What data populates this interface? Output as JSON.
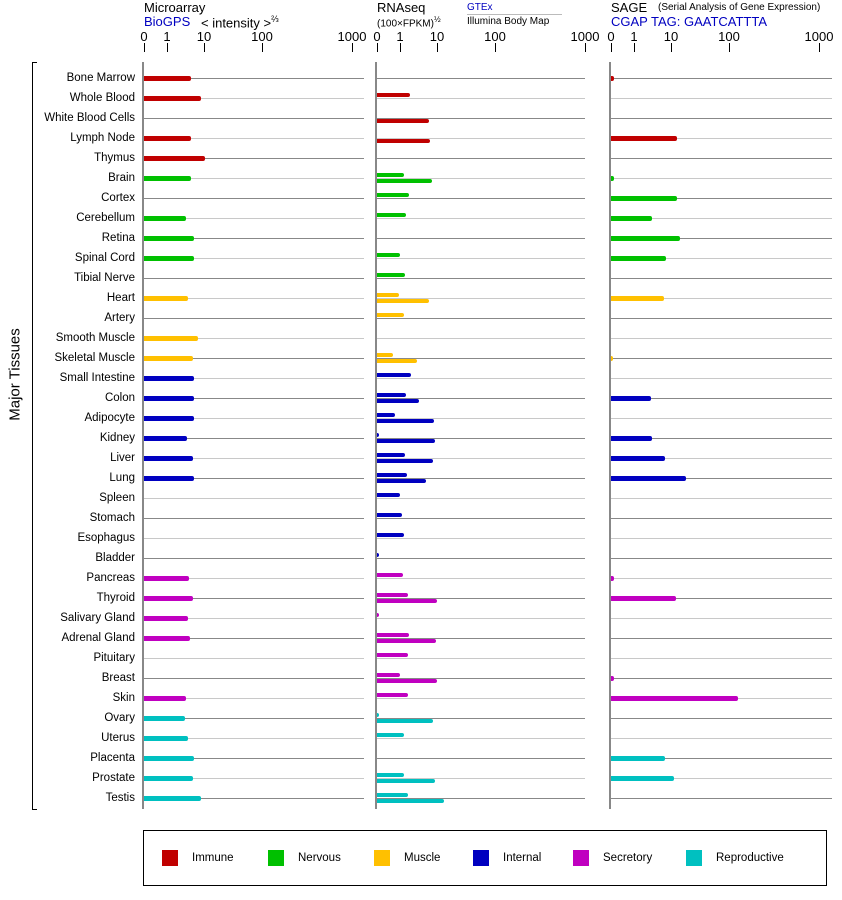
{
  "headers": {
    "microarray": {
      "title": "Microarray",
      "source": "BioGPS",
      "unit": "< intensity >",
      "unit_exp": "⅔"
    },
    "rnaseq": {
      "title": "RNAseq",
      "unit": "(100×FPKM)",
      "unit_exp": "½",
      "source1": "GTEx",
      "source2": "Illumina Body Map"
    },
    "sage": {
      "title": "SAGE",
      "subtitle": "(Serial Analysis of Gene Expression)",
      "tag": "CGAP TAG: GAATCATTTA"
    }
  },
  "y_axis_label": "Major Tissues",
  "chart_data": {
    "type": "bar",
    "orientation": "horizontal",
    "scale": "nonlinear",
    "ticks": [
      "0",
      "1",
      "10",
      "100",
      "1000"
    ],
    "tick_values": [
      0,
      1,
      10,
      100,
      1000
    ],
    "xlim": [
      0,
      1000
    ],
    "groups": [
      {
        "name": "Immune",
        "color": "#c00000"
      },
      {
        "name": "Nervous",
        "color": "#00c000"
      },
      {
        "name": "Muscle",
        "color": "#ffc000"
      },
      {
        "name": "Internal",
        "color": "#0000c0"
      },
      {
        "name": "Secretory",
        "color": "#c000c0"
      },
      {
        "name": "Reproductive",
        "color": "#00c0c0"
      }
    ],
    "series": [
      "Microarray (BioGPS)",
      "RNAseq GTEx",
      "RNAseq Illumina Body Map",
      "SAGE"
    ],
    "tissues": [
      {
        "name": "Bone Marrow",
        "group": 0,
        "micro": 5.0,
        "gtex": null,
        "illumina": null,
        "sage": 0.1
      },
      {
        "name": "Whole Blood",
        "group": 0,
        "micro": 8.4,
        "gtex": 2.2,
        "illumina": null,
        "sage": null
      },
      {
        "name": "White Blood Cells",
        "group": 0,
        "micro": null,
        "gtex": null,
        "illumina": 6.5,
        "sage": null
      },
      {
        "name": "Lymph Node",
        "group": 0,
        "micro": 5.0,
        "gtex": null,
        "illumina": 6.8,
        "sage": 12.6
      },
      {
        "name": "Thymus",
        "group": 0,
        "micro": 10.3,
        "gtex": null,
        "illumina": null,
        "sage": null
      },
      {
        "name": "Brain",
        "group": 1,
        "micro": 5.0,
        "gtex": 1.4,
        "illumina": 7.6,
        "sage": 0.1
      },
      {
        "name": "Cortex",
        "group": 1,
        "micro": null,
        "gtex": 2.0,
        "illumina": null,
        "sage": 13
      },
      {
        "name": "Cerebellum",
        "group": 1,
        "micro": 3.8,
        "gtex": 1.6,
        "illumina": null,
        "sage": 3.6
      },
      {
        "name": "Retina",
        "group": 1,
        "micro": 5.8,
        "gtex": null,
        "illumina": null,
        "sage": 14.8
      },
      {
        "name": "Spinal Cord",
        "group": 1,
        "micro": 6.1,
        "gtex": 1.0,
        "illumina": null,
        "sage": 7.6
      },
      {
        "name": "Tibial Nerve",
        "group": 1,
        "micro": null,
        "gtex": 1.5,
        "illumina": null,
        "sage": null
      },
      {
        "name": "Heart",
        "group": 2,
        "micro": 4.2,
        "gtex": 0.95,
        "illumina": 6.5,
        "sage": 6.8
      },
      {
        "name": "Artery",
        "group": 2,
        "micro": null,
        "gtex": 1.4,
        "illumina": null,
        "sage": null
      },
      {
        "name": "Smooth Muscle",
        "group": 2,
        "micro": 7.3,
        "gtex": null,
        "illumina": null,
        "sage": null
      },
      {
        "name": "Skeletal Muscle",
        "group": 2,
        "micro": 5.5,
        "gtex": 0.63,
        "illumina": 3.3,
        "sage": 0.05
      },
      {
        "name": "Small Intestine",
        "group": 3,
        "micro": 6.1,
        "gtex": 2.3,
        "illumina": null,
        "sage": null
      },
      {
        "name": "Colon",
        "group": 3,
        "micro": 5.8,
        "gtex": 1.6,
        "illumina": 3.8,
        "sage": 3.3
      },
      {
        "name": "Adipocyte",
        "group": 3,
        "micro": 5.8,
        "gtex": 0.73,
        "illumina": 8.4,
        "sage": null
      },
      {
        "name": "Kidney",
        "group": 3,
        "micro": 4.0,
        "gtex": 0.05,
        "illumina": 9.0,
        "sage": 3.6
      },
      {
        "name": "Liver",
        "group": 3,
        "micro": 5.5,
        "gtex": 1.5,
        "illumina": 8.0,
        "sage": 7.2
      },
      {
        "name": "Lung",
        "group": 3,
        "micro": 6.1,
        "gtex": 1.8,
        "illumina": 5.5,
        "sage": 18.2
      },
      {
        "name": "Spleen",
        "group": 3,
        "micro": null,
        "gtex": 1.0,
        "illumina": null,
        "sage": null
      },
      {
        "name": "Stomach",
        "group": 3,
        "micro": null,
        "gtex": 1.2,
        "illumina": null,
        "sage": null
      },
      {
        "name": "Esophagus",
        "group": 3,
        "micro": null,
        "gtex": 1.4,
        "illumina": null,
        "sage": null
      },
      {
        "name": "Bladder",
        "group": 3,
        "micro": null,
        "gtex": 0.05,
        "illumina": null,
        "sage": null
      },
      {
        "name": "Pancreas",
        "group": 4,
        "micro": 4.4,
        "gtex": 1.3,
        "illumina": null,
        "sage": 0.1
      },
      {
        "name": "Thyroid",
        "group": 4,
        "micro": 5.5,
        "gtex": 1.9,
        "illumina": 9.8,
        "sage": 12.1
      },
      {
        "name": "Salivary Gland",
        "group": 4,
        "micro": 4.2,
        "gtex": 0.05,
        "illumina": null,
        "sage": null
      },
      {
        "name": "Adrenal Gland",
        "group": 4,
        "micro": 4.7,
        "gtex": 2.0,
        "illumina": 9.3,
        "sage": null
      },
      {
        "name": "Pituitary",
        "group": 4,
        "micro": null,
        "gtex": 1.9,
        "illumina": null,
        "sage": null
      },
      {
        "name": "Breast",
        "group": 4,
        "micro": null,
        "gtex": 1.0,
        "illumina": 9.8,
        "sage": 0.1
      },
      {
        "name": "Skin",
        "group": 4,
        "micro": 3.8,
        "gtex": 1.9,
        "illumina": null,
        "sage": 127
      },
      {
        "name": "Ovary",
        "group": 5,
        "micro": 3.6,
        "gtex": 0.05,
        "illumina": 8.0,
        "sage": null
      },
      {
        "name": "Uterus",
        "group": 5,
        "micro": 4.2,
        "gtex": 1.4,
        "illumina": null,
        "sage": null
      },
      {
        "name": "Placenta",
        "group": 5,
        "micro": 6.1,
        "gtex": null,
        "illumina": null,
        "sage": 7.2
      },
      {
        "name": "Prostate",
        "group": 5,
        "micro": 5.5,
        "gtex": 1.4,
        "illumina": 9.0,
        "sage": 11.5
      },
      {
        "name": "Testis",
        "group": 5,
        "micro": 8.4,
        "gtex": 1.9,
        "illumina": 13.2,
        "sage": null
      }
    ]
  }
}
